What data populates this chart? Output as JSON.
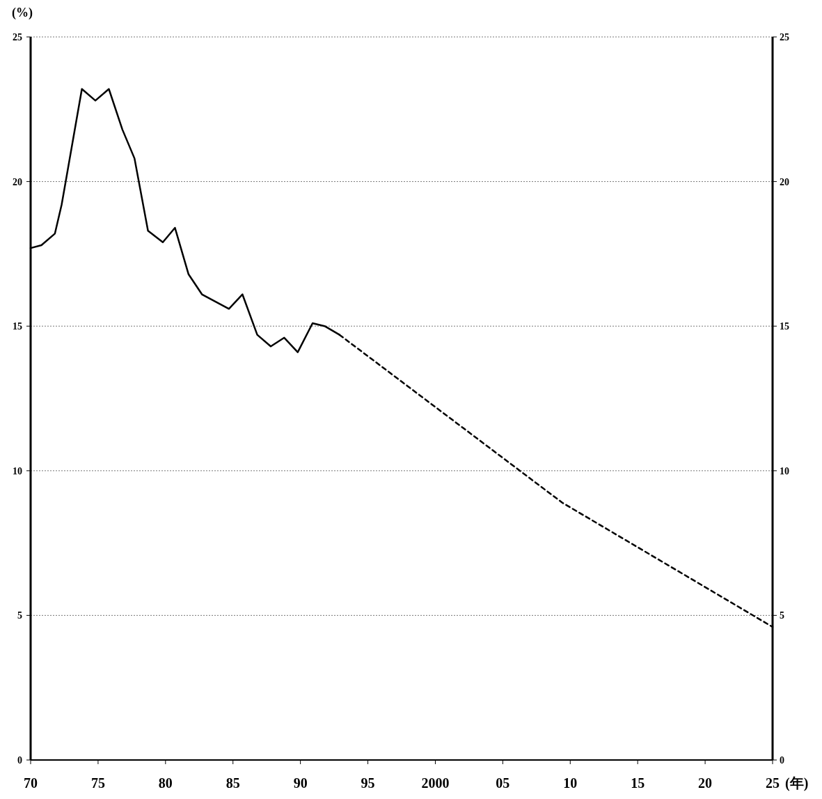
{
  "chart_data": {
    "type": "line",
    "ylabel": "(%)",
    "xlabel": "(年)",
    "xlim": [
      1970,
      2025
    ],
    "xticks": [
      {
        "value": 1970,
        "label": "70"
      },
      {
        "value": 1975,
        "label": "75"
      },
      {
        "value": 1980,
        "label": "80"
      },
      {
        "value": 1985,
        "label": "85"
      },
      {
        "value": 1990,
        "label": "90"
      },
      {
        "value": 1995,
        "label": "95"
      },
      2000,
      {
        "value": 2005,
        "label": "05"
      },
      {
        "value": 2010,
        "label": "10"
      },
      {
        "value": 2015,
        "label": "15"
      },
      {
        "value": 2020,
        "label": "20"
      },
      {
        "value": 2025,
        "label": "25"
      }
    ],
    "ylim": [
      0,
      25
    ],
    "yticks": [
      0,
      5,
      10,
      15,
      20,
      25
    ],
    "y2lim": [
      0,
      25
    ],
    "y2ticks": [
      0,
      5,
      10,
      15,
      20,
      25
    ],
    "grid": "y",
    "marker": "none",
    "series": [
      {
        "color": "#000000",
        "line_style": "solid",
        "x": [
          1970,
          1970.8,
          1971.8,
          1972.3,
          1973.8,
          1974.8,
          1975.8,
          1976.8,
          1977.7,
          1978.7,
          1979.8,
          1980.7,
          1981.7,
          1982.7,
          1984.7,
          1985.7,
          1986.8,
          1987.8,
          1988.8,
          1989.8,
          1990.9,
          1991.8,
          1992.9
        ],
        "values": [
          17.7,
          17.8,
          18.2,
          19.2,
          23.2,
          22.8,
          23.2,
          21.8,
          20.8,
          18.3,
          17.9,
          18.4,
          16.8,
          16.1,
          15.6,
          16.1,
          14.7,
          14.3,
          14.6,
          14.1,
          15.1,
          15.0,
          14.7
        ]
      },
      {
        "color": "#000000",
        "line_style": "dashed",
        "x": [
          1992.9,
          2009.4,
          2025
        ],
        "values": [
          14.7,
          8.9,
          4.6
        ]
      }
    ]
  }
}
